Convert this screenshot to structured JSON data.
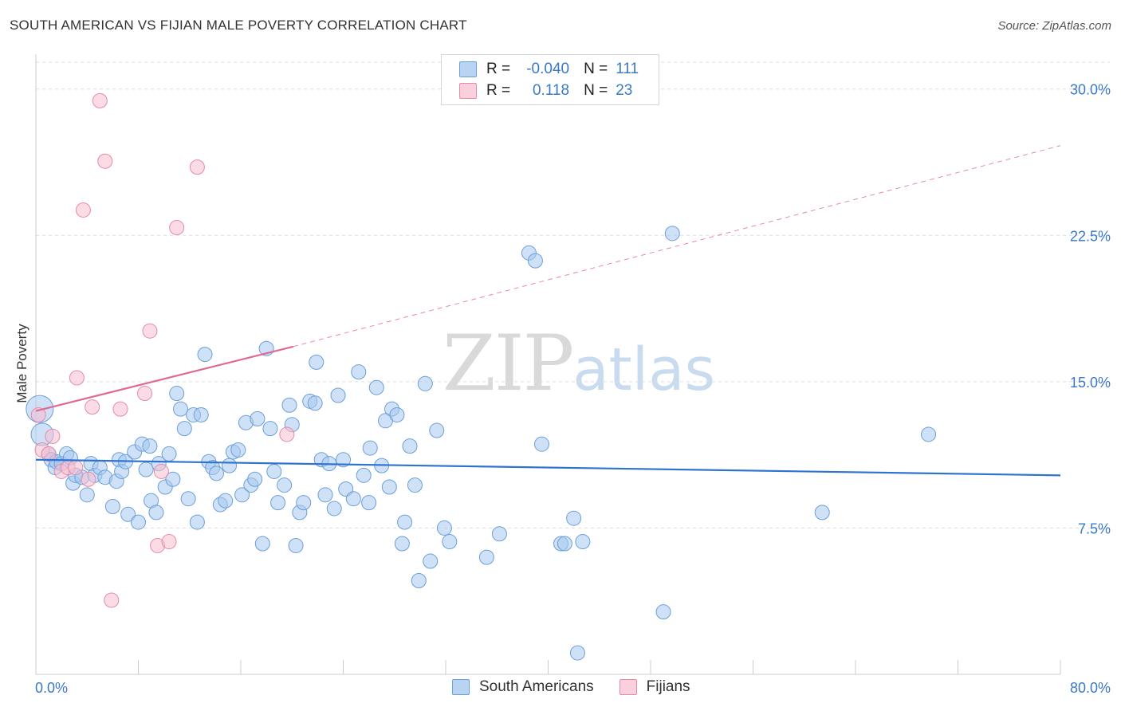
{
  "title": "SOUTH AMERICAN VS FIJIAN MALE POVERTY CORRELATION CHART",
  "source": "Source: ZipAtlas.com",
  "watermark": {
    "zip": "ZIP",
    "atlas": "atlas"
  },
  "legend": {
    "rows": [
      {
        "r_label": "R =",
        "r_value": "-0.040",
        "n_label": "N =",
        "n_value": "111"
      },
      {
        "r_label": "R =",
        "r_value": "0.118",
        "n_label": "N =",
        "n_value": "23"
      }
    ]
  },
  "colors": {
    "blue_fill": "#a8c8f0",
    "blue_stroke": "#6b9fd8",
    "blue_line": "#2f73d0",
    "pink_fill": "#f7bfd0",
    "pink_stroke": "#e58aa8",
    "pink_line": "#e06a94",
    "grid": "#dedede",
    "axis_text": "#3a78c9"
  },
  "chart_data": {
    "type": "scatter",
    "title": "SOUTH AMERICAN VS FIJIAN MALE POVERTY CORRELATION CHART",
    "xlabel": "",
    "ylabel": "Male Poverty",
    "xlim": [
      0,
      80
    ],
    "ylim": [
      0,
      31.5
    ],
    "y_ticks": [
      7.5,
      15.0,
      22.5,
      30.0
    ],
    "y_tick_labels": [
      "7.5%",
      "15.0%",
      "22.5%",
      "30.0%"
    ],
    "x_tick_labels": [
      "0.0%",
      "80.0%"
    ],
    "grid": true,
    "legend_position": "top-center",
    "series": [
      {
        "name": "South Americans",
        "R": -0.04,
        "N": 111,
        "trend": {
          "x": [
            0,
            80
          ],
          "y": [
            11.0,
            10.2
          ],
          "style": "solid"
        },
        "points": [
          [
            0.3,
            13.6
          ],
          [
            0.5,
            12.3
          ],
          [
            1.0,
            11.3
          ],
          [
            1.2,
            11.0
          ],
          [
            1.5,
            10.6
          ],
          [
            1.6,
            10.9
          ],
          [
            2.0,
            10.8
          ],
          [
            2.4,
            11.3
          ],
          [
            2.7,
            11.1
          ],
          [
            2.9,
            9.8
          ],
          [
            3.1,
            10.2
          ],
          [
            3.6,
            10.1
          ],
          [
            4.0,
            9.2
          ],
          [
            4.3,
            10.8
          ],
          [
            4.6,
            10.2
          ],
          [
            5.0,
            10.6
          ],
          [
            5.4,
            10.1
          ],
          [
            6.0,
            8.6
          ],
          [
            6.3,
            9.9
          ],
          [
            6.5,
            11.0
          ],
          [
            6.7,
            10.4
          ],
          [
            7.0,
            10.9
          ],
          [
            7.2,
            8.2
          ],
          [
            7.7,
            11.4
          ],
          [
            8.0,
            7.8
          ],
          [
            8.3,
            11.8
          ],
          [
            8.6,
            10.5
          ],
          [
            8.9,
            11.7
          ],
          [
            9.0,
            8.9
          ],
          [
            9.4,
            8.3
          ],
          [
            9.6,
            10.8
          ],
          [
            10.1,
            9.6
          ],
          [
            10.4,
            11.3
          ],
          [
            10.7,
            10.0
          ],
          [
            11.0,
            14.4
          ],
          [
            11.3,
            13.6
          ],
          [
            11.6,
            12.6
          ],
          [
            11.9,
            9.0
          ],
          [
            12.3,
            13.3
          ],
          [
            12.6,
            7.8
          ],
          [
            12.9,
            13.3
          ],
          [
            13.2,
            16.4
          ],
          [
            13.5,
            10.9
          ],
          [
            13.8,
            10.6
          ],
          [
            14.1,
            10.3
          ],
          [
            14.4,
            8.7
          ],
          [
            14.8,
            8.9
          ],
          [
            15.1,
            10.7
          ],
          [
            15.4,
            11.4
          ],
          [
            15.8,
            11.5
          ],
          [
            16.1,
            9.2
          ],
          [
            16.4,
            12.9
          ],
          [
            16.8,
            9.7
          ],
          [
            17.1,
            10.0
          ],
          [
            17.3,
            13.1
          ],
          [
            17.7,
            6.7
          ],
          [
            18.0,
            16.7
          ],
          [
            18.3,
            12.6
          ],
          [
            18.6,
            10.4
          ],
          [
            18.9,
            8.8
          ],
          [
            19.4,
            9.7
          ],
          [
            19.8,
            13.8
          ],
          [
            20.0,
            12.8
          ],
          [
            20.3,
            6.6
          ],
          [
            20.6,
            8.3
          ],
          [
            20.9,
            8.8
          ],
          [
            21.4,
            14.0
          ],
          [
            21.8,
            13.9
          ],
          [
            21.9,
            16.0
          ],
          [
            22.3,
            11.0
          ],
          [
            22.6,
            9.2
          ],
          [
            22.9,
            10.8
          ],
          [
            23.3,
            8.5
          ],
          [
            23.6,
            14.3
          ],
          [
            24.0,
            11.0
          ],
          [
            24.2,
            9.5
          ],
          [
            24.8,
            9.0
          ],
          [
            25.2,
            15.5
          ],
          [
            25.6,
            10.2
          ],
          [
            26.0,
            8.8
          ],
          [
            26.1,
            11.6
          ],
          [
            26.6,
            14.7
          ],
          [
            27.0,
            10.7
          ],
          [
            27.3,
            13.0
          ],
          [
            27.6,
            9.6
          ],
          [
            27.8,
            13.6
          ],
          [
            28.2,
            13.3
          ],
          [
            28.8,
            7.8
          ],
          [
            28.6,
            6.7
          ],
          [
            29.2,
            11.7
          ],
          [
            29.6,
            9.7
          ],
          [
            29.9,
            4.8
          ],
          [
            30.4,
            14.9
          ],
          [
            30.8,
            5.8
          ],
          [
            31.3,
            12.5
          ],
          [
            31.9,
            7.5
          ],
          [
            32.3,
            6.8
          ],
          [
            35.2,
            6.0
          ],
          [
            36.2,
            7.2
          ],
          [
            38.5,
            21.6
          ],
          [
            39.0,
            21.2
          ],
          [
            39.5,
            11.8
          ],
          [
            41.0,
            6.7
          ],
          [
            42.0,
            8.0
          ],
          [
            42.3,
            1.1
          ],
          [
            41.3,
            6.7
          ],
          [
            49.7,
            22.6
          ],
          [
            49.0,
            3.2
          ],
          [
            61.4,
            8.3
          ],
          [
            69.7,
            12.3
          ],
          [
            42.7,
            6.8
          ]
        ]
      },
      {
        "name": "Fijians",
        "R": 0.118,
        "N": 23,
        "trend": {
          "x": [
            0,
            20.1
          ],
          "y": [
            13.5,
            16.8
          ],
          "style": "solid",
          "extension": {
            "x": [
              20.1,
              80
            ],
            "y": [
              16.8,
              27.1
            ],
            "style": "dashed"
          }
        },
        "points": [
          [
            0.2,
            13.3
          ],
          [
            0.5,
            11.5
          ],
          [
            1.0,
            11.3
          ],
          [
            1.3,
            12.2
          ],
          [
            2.0,
            10.4
          ],
          [
            2.5,
            10.6
          ],
          [
            3.1,
            10.6
          ],
          [
            3.2,
            15.2
          ],
          [
            3.7,
            23.8
          ],
          [
            4.1,
            10.0
          ],
          [
            4.4,
            13.7
          ],
          [
            5.0,
            29.4
          ],
          [
            5.4,
            26.3
          ],
          [
            5.9,
            3.8
          ],
          [
            6.6,
            13.6
          ],
          [
            8.5,
            14.4
          ],
          [
            8.9,
            17.6
          ],
          [
            9.5,
            6.6
          ],
          [
            9.8,
            10.4
          ],
          [
            10.4,
            6.8
          ],
          [
            11.0,
            22.9
          ],
          [
            12.6,
            26.0
          ],
          [
            19.6,
            12.3
          ]
        ]
      }
    ]
  }
}
